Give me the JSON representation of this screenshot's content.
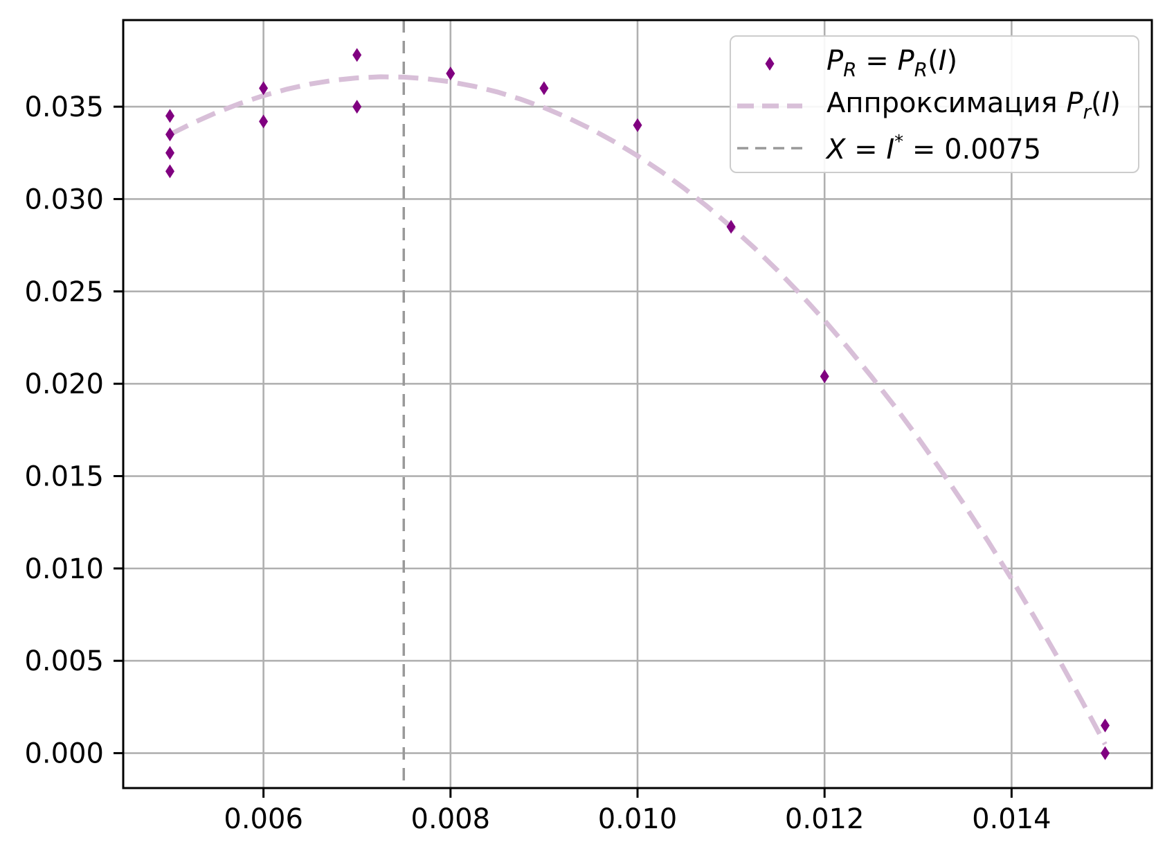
{
  "chart_data": {
    "type": "scatter",
    "grid": true,
    "legend_position": "upper right",
    "xlim": [
      0.0045,
      0.0155
    ],
    "ylim": [
      -0.00189,
      0.03969
    ],
    "colors": {
      "scatter": "#800080",
      "approximation": "#D8BFD8",
      "vline": "#999999",
      "grid": "#b0b0b0",
      "spine": "#000000",
      "legend_border": "#cccccc"
    },
    "x_ticks": [
      {
        "v": 0.006,
        "label": "0.006"
      },
      {
        "v": 0.008,
        "label": "0.008"
      },
      {
        "v": 0.01,
        "label": "0.010"
      },
      {
        "v": 0.012,
        "label": "0.012"
      },
      {
        "v": 0.014,
        "label": "0.014"
      }
    ],
    "y_ticks": [
      {
        "v": 0.0,
        "label": "0.000"
      },
      {
        "v": 0.005,
        "label": "0.005"
      },
      {
        "v": 0.01,
        "label": "0.010"
      },
      {
        "v": 0.015,
        "label": "0.015"
      },
      {
        "v": 0.02,
        "label": "0.020"
      },
      {
        "v": 0.025,
        "label": "0.025"
      },
      {
        "v": 0.03,
        "label": "0.030"
      },
      {
        "v": 0.035,
        "label": "0.035"
      }
    ],
    "series": [
      {
        "name": "P_R = P_R(I)",
        "kind": "scatter",
        "marker": "thin-diamond",
        "color": "#800080",
        "points": [
          [
            0.005,
            0.0345
          ],
          [
            0.005,
            0.0335
          ],
          [
            0.005,
            0.0325
          ],
          [
            0.005,
            0.0315
          ],
          [
            0.006,
            0.036
          ],
          [
            0.006,
            0.0342
          ],
          [
            0.007,
            0.0378
          ],
          [
            0.007,
            0.035
          ],
          [
            0.008,
            0.0368
          ],
          [
            0.009,
            0.036
          ],
          [
            0.01,
            0.034
          ],
          [
            0.011,
            0.0285
          ],
          [
            0.012,
            0.0204
          ],
          [
            0.015,
            0.0015
          ],
          [
            0.015,
            0.0
          ]
        ]
      },
      {
        "name": "Аппроксимация P_r(I)",
        "kind": "line",
        "style": "dashed",
        "color": "#D8BFD8",
        "points": [
          [
            0.005,
            0.0335
          ],
          [
            0.00525,
            0.03413
          ],
          [
            0.0055,
            0.03469
          ],
          [
            0.00575,
            0.03518
          ],
          [
            0.006,
            0.0356
          ],
          [
            0.00625,
            0.03595
          ],
          [
            0.0065,
            0.03623
          ],
          [
            0.00675,
            0.03643
          ],
          [
            0.007,
            0.03656
          ],
          [
            0.00725,
            0.03662
          ],
          [
            0.0075,
            0.0366
          ],
          [
            0.00775,
            0.03651
          ],
          [
            0.008,
            0.03635
          ],
          [
            0.00825,
            0.03611
          ],
          [
            0.0085,
            0.0358
          ],
          [
            0.00875,
            0.03541
          ],
          [
            0.009,
            0.03495
          ],
          [
            0.00925,
            0.03441
          ],
          [
            0.0095,
            0.0338
          ],
          [
            0.00975,
            0.03311
          ],
          [
            0.01,
            0.03234
          ],
          [
            0.01025,
            0.0315
          ],
          [
            0.0105,
            0.03058
          ],
          [
            0.01075,
            0.02958
          ],
          [
            0.011,
            0.0285
          ],
          [
            0.01125,
            0.02735
          ],
          [
            0.0115,
            0.02612
          ],
          [
            0.01175,
            0.02481
          ],
          [
            0.012,
            0.02342
          ],
          [
            0.01225,
            0.02195
          ],
          [
            0.0125,
            0.0204
          ],
          [
            0.01275,
            0.01878
          ],
          [
            0.013,
            0.01707
          ],
          [
            0.01325,
            0.01528
          ],
          [
            0.0135,
            0.01341
          ],
          [
            0.01375,
            0.01146
          ],
          [
            0.014,
            0.00943
          ],
          [
            0.01425,
            0.00732
          ],
          [
            0.0145,
            0.00512
          ],
          [
            0.01475,
            0.00284
          ],
          [
            0.015,
            0.00048
          ]
        ]
      },
      {
        "name": "X = I* = 0.0075",
        "kind": "vline",
        "style": "dashed",
        "color": "#999999",
        "x": 0.0075
      }
    ],
    "legend": {
      "items": [
        {
          "sample": "diamond",
          "color": "#800080",
          "segments": [
            {
              "t": "P",
              "s": "i"
            },
            {
              "t": "R",
              "s": "isub"
            },
            {
              "t": " = ",
              "s": ""
            },
            {
              "t": "P",
              "s": "i"
            },
            {
              "t": "R",
              "s": "isub"
            },
            {
              "t": "(",
              "s": ""
            },
            {
              "t": "I",
              "s": "i"
            },
            {
              "t": ")",
              "s": ""
            }
          ]
        },
        {
          "sample": "dash-thick",
          "color": "#D8BFD8",
          "segments": [
            {
              "t": "Аппроксимация ",
              "s": ""
            },
            {
              "t": "P",
              "s": "i"
            },
            {
              "t": "r",
              "s": "isub"
            },
            {
              "t": "(",
              "s": ""
            },
            {
              "t": "I",
              "s": "i"
            },
            {
              "t": ")",
              "s": ""
            }
          ]
        },
        {
          "sample": "dash-thin",
          "color": "#999999",
          "segments": [
            {
              "t": "X",
              "s": "i"
            },
            {
              "t": " = ",
              "s": ""
            },
            {
              "t": "I",
              "s": "i"
            },
            {
              "t": "*",
              "s": "sup"
            },
            {
              "t": " = 0.0075",
              "s": ""
            }
          ]
        }
      ]
    }
  }
}
